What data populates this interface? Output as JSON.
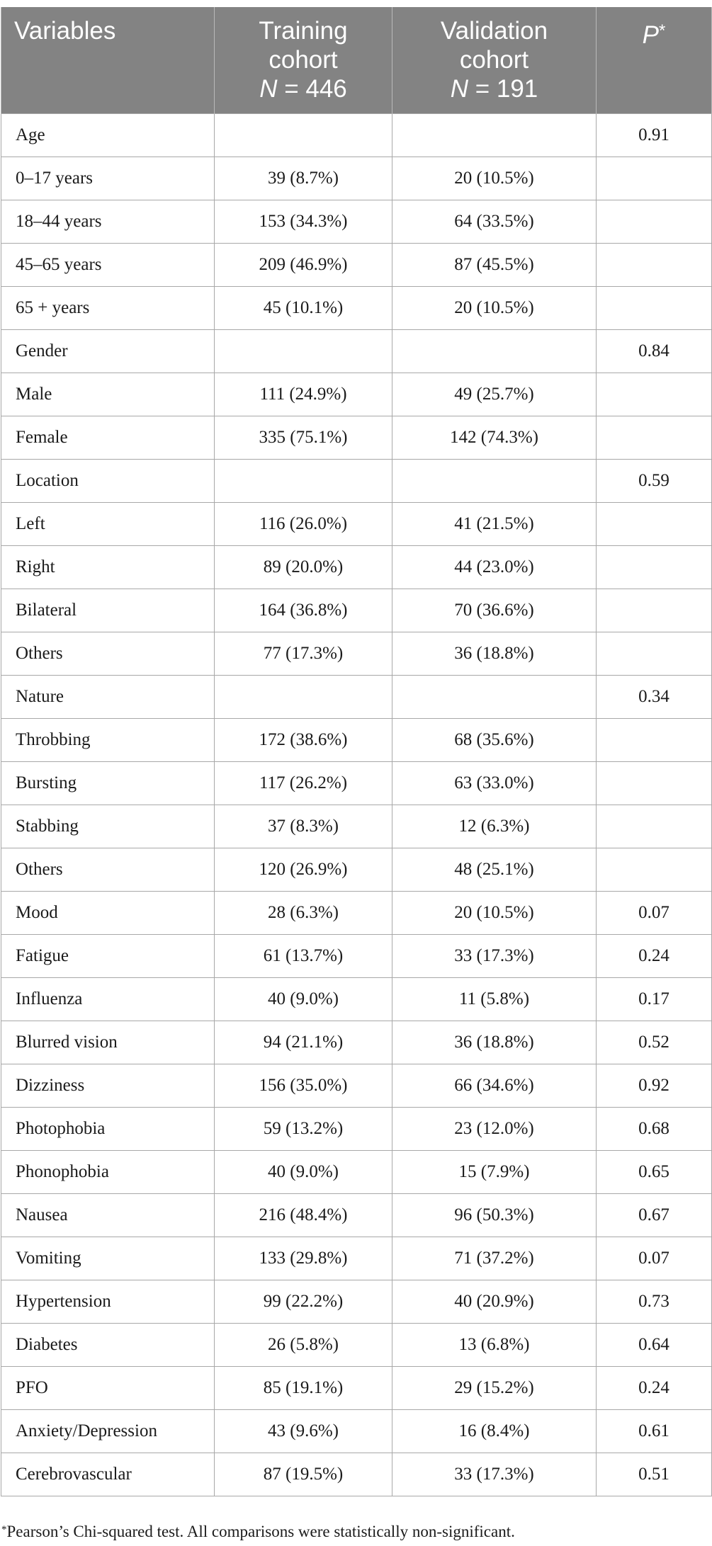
{
  "header": {
    "variables": "Variables",
    "training_line1": "Training",
    "training_line2": "cohort",
    "training_n_label": "N",
    "training_n_value": " = 446",
    "validation_line1": "Validation",
    "validation_line2": "cohort",
    "validation_n_label": "N",
    "validation_n_value": " = 191",
    "p_label": "P",
    "p_mark": "*"
  },
  "rows": [
    {
      "variable": "Age",
      "training": "",
      "validation": "",
      "p": "0.91"
    },
    {
      "variable": "0–17 years",
      "training": "39 (8.7%)",
      "validation": "20 (10.5%)",
      "p": ""
    },
    {
      "variable": "18–44 years",
      "training": "153 (34.3%)",
      "validation": "64 (33.5%)",
      "p": ""
    },
    {
      "variable": "45–65 years",
      "training": "209 (46.9%)",
      "validation": "87 (45.5%)",
      "p": ""
    },
    {
      "variable": "65 + years",
      "training": "45 (10.1%)",
      "validation": "20 (10.5%)",
      "p": ""
    },
    {
      "variable": "Gender",
      "training": "",
      "validation": "",
      "p": "0.84"
    },
    {
      "variable": "Male",
      "training": "111 (24.9%)",
      "validation": "49 (25.7%)",
      "p": ""
    },
    {
      "variable": "Female",
      "training": "335 (75.1%)",
      "validation": "142 (74.3%)",
      "p": ""
    },
    {
      "variable": "Location",
      "training": "",
      "validation": "",
      "p": "0.59"
    },
    {
      "variable": "Left",
      "training": "116 (26.0%)",
      "validation": "41 (21.5%)",
      "p": ""
    },
    {
      "variable": "Right",
      "training": "89 (20.0%)",
      "validation": "44 (23.0%)",
      "p": ""
    },
    {
      "variable": "Bilateral",
      "training": "164 (36.8%)",
      "validation": "70 (36.6%)",
      "p": ""
    },
    {
      "variable": "Others",
      "training": "77 (17.3%)",
      "validation": "36 (18.8%)",
      "p": ""
    },
    {
      "variable": "Nature",
      "training": "",
      "validation": "",
      "p": "0.34"
    },
    {
      "variable": "Throbbing",
      "training": "172 (38.6%)",
      "validation": "68 (35.6%)",
      "p": ""
    },
    {
      "variable": "Bursting",
      "training": "117 (26.2%)",
      "validation": "63 (33.0%)",
      "p": ""
    },
    {
      "variable": "Stabbing",
      "training": "37 (8.3%)",
      "validation": "12 (6.3%)",
      "p": ""
    },
    {
      "variable": "Others",
      "training": "120 (26.9%)",
      "validation": "48 (25.1%)",
      "p": ""
    },
    {
      "variable": "Mood",
      "training": "28 (6.3%)",
      "validation": "20 (10.5%)",
      "p": "0.07"
    },
    {
      "variable": "Fatigue",
      "training": "61 (13.7%)",
      "validation": "33 (17.3%)",
      "p": "0.24"
    },
    {
      "variable": "Influenza",
      "training": "40 (9.0%)",
      "validation": "11 (5.8%)",
      "p": "0.17"
    },
    {
      "variable": "Blurred vision",
      "training": "94 (21.1%)",
      "validation": "36 (18.8%)",
      "p": "0.52"
    },
    {
      "variable": "Dizziness",
      "training": "156 (35.0%)",
      "validation": "66 (34.6%)",
      "p": "0.92"
    },
    {
      "variable": "Photophobia",
      "training": "59 (13.2%)",
      "validation": "23 (12.0%)",
      "p": "0.68"
    },
    {
      "variable": "Phonophobia",
      "training": "40 (9.0%)",
      "validation": "15 (7.9%)",
      "p": "0.65"
    },
    {
      "variable": "Nausea",
      "training": "216 (48.4%)",
      "validation": "96 (50.3%)",
      "p": "0.67"
    },
    {
      "variable": "Vomiting",
      "training": "133 (29.8%)",
      "validation": "71 (37.2%)",
      "p": "0.07"
    },
    {
      "variable": "Hypertension",
      "training": "99 (22.2%)",
      "validation": "40 (20.9%)",
      "p": "0.73"
    },
    {
      "variable": "Diabetes",
      "training": "26 (5.8%)",
      "validation": "13 (6.8%)",
      "p": "0.64"
    },
    {
      "variable": "PFO",
      "training": "85 (19.1%)",
      "validation": "29 (15.2%)",
      "p": "0.24"
    },
    {
      "variable": "Anxiety/Depression",
      "training": "43 (9.6%)",
      "validation": "16 (8.4%)",
      "p": "0.61"
    },
    {
      "variable": "Cerebrovascular",
      "training": "87 (19.5%)",
      "validation": "33 (17.3%)",
      "p": "0.51"
    }
  ],
  "footnote": {
    "mark": "*",
    "text": "Pearson’s Chi-squared test. All comparisons were statistically non-significant."
  },
  "colors": {
    "header_bg": "#838383",
    "header_text": "#ffffff",
    "grid": "#a8a8a8"
  }
}
